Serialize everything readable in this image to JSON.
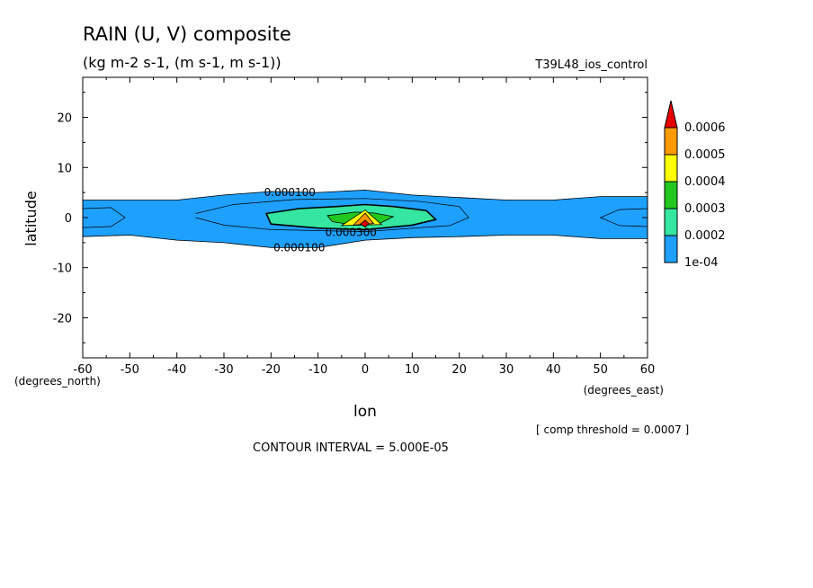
{
  "header": {
    "title": "RAIN (U, V) composite",
    "units": "(kg m-2 s-1, (m s-1, m s-1))",
    "run_name": "T39L48_ios_control"
  },
  "footer": {
    "threshold": "[ comp threshold = 0.0007 ]",
    "contour_interval": "CONTOUR INTERVAL = 5.000E-05"
  },
  "chart_data": {
    "type": "heatmap",
    "xlabel": "lon",
    "ylabel": "latitude",
    "x_unit_label": "(degrees_east)",
    "y_unit_label": "(degrees_north)",
    "xlim": [
      -60,
      60
    ],
    "ylim": [
      -28,
      28
    ],
    "x_ticks": [
      -60,
      -50,
      -40,
      -30,
      -20,
      -10,
      0,
      10,
      20,
      30,
      40,
      50,
      60
    ],
    "y_ticks": [
      -20,
      -10,
      0,
      10,
      20
    ],
    "x_tick_labels": [
      "-60",
      "-50",
      "-40",
      "-30",
      "-20",
      "-10",
      "0",
      "10",
      "20",
      "30",
      "40",
      "50",
      "60"
    ],
    "y_tick_labels": [
      "-20",
      "-10",
      "0",
      "10",
      "20"
    ],
    "colorbar": {
      "levels": [
        0.0001,
        0.0002,
        0.0003,
        0.0004,
        0.0005,
        0.0006
      ],
      "labels": [
        "1e-04",
        "0.0002",
        "0.0003",
        "0.0004",
        "0.0005",
        "0.0006"
      ],
      "colors": [
        "#1ea0ff",
        "#34e6a0",
        "#22c81e",
        "#ffff00",
        "#ff9a00",
        "#e60000"
      ]
    },
    "contour_labels": [
      {
        "text": "0.000100",
        "lon": -16,
        "lat": 5
      },
      {
        "text": "0.000100",
        "lon": -14,
        "lat": -6
      },
      {
        "text": "0.000300",
        "lon": -3,
        "lat": -3
      }
    ],
    "regions": [
      {
        "level": 0.0001,
        "shape": [
          [
            -60,
            3.5
          ],
          [
            -50,
            3.5
          ],
          [
            -40,
            3.5
          ],
          [
            -30,
            4.5
          ],
          [
            -20,
            5.2
          ],
          [
            -10,
            5
          ],
          [
            0,
            5.5
          ],
          [
            10,
            4.5
          ],
          [
            20,
            4
          ],
          [
            30,
            3.5
          ],
          [
            40,
            3.5
          ],
          [
            50,
            4.2
          ],
          [
            60,
            4.2
          ],
          [
            60,
            -4.2
          ],
          [
            50,
            -4.2
          ],
          [
            40,
            -3.5
          ],
          [
            30,
            -3.5
          ],
          [
            20,
            -3.8
          ],
          [
            10,
            -4
          ],
          [
            0,
            -4.5
          ],
          [
            -10,
            -6
          ],
          [
            -20,
            -6
          ],
          [
            -30,
            -5
          ],
          [
            -40,
            -4.5
          ],
          [
            -50,
            -3.5
          ],
          [
            -60,
            -3.8
          ]
        ]
      },
      {
        "level": 0.0002,
        "shape": [
          [
            -21,
            0.8
          ],
          [
            -14,
            1.8
          ],
          [
            -6,
            2.2
          ],
          [
            0,
            2.6
          ],
          [
            6,
            2.2
          ],
          [
            13,
            1.4
          ],
          [
            15,
            -0.4
          ],
          [
            10,
            -1.5
          ],
          [
            0,
            -2.4
          ],
          [
            -10,
            -2.1
          ],
          [
            -20,
            -1.3
          ]
        ]
      },
      {
        "level": 0.0003,
        "shape": [
          [
            -8,
            0.4
          ],
          [
            -2,
            1.1
          ],
          [
            2,
            0.9
          ],
          [
            6,
            0.2
          ],
          [
            3,
            -1.2
          ],
          [
            -3,
            -1.4
          ],
          [
            -7,
            -0.8
          ]
        ]
      },
      {
        "level": 0.0004,
        "shape": [
          [
            -5,
            -1.6
          ],
          [
            0,
            1.5
          ],
          [
            3.5,
            -1.4
          ]
        ]
      },
      {
        "level": 0.0005,
        "shape": [
          [
            -2.5,
            -1.5
          ],
          [
            0,
            0.9
          ],
          [
            1.8,
            -1.2
          ]
        ]
      },
      {
        "level": 0.0006,
        "shape": [
          [
            -1,
            -1.3
          ],
          [
            0,
            -0.5
          ],
          [
            0.8,
            -1.2
          ],
          [
            0,
            -1.9
          ]
        ]
      }
    ],
    "contour_lines": [
      [
        [
          -60,
          1.8
        ],
        [
          -54,
          2
        ],
        [
          -51,
          0
        ],
        [
          -54,
          -1.8
        ],
        [
          -60,
          -2
        ]
      ],
      [
        [
          -36,
          0.8
        ],
        [
          -28,
          2.6
        ],
        [
          -15,
          3.6
        ],
        [
          0,
          3.8
        ],
        [
          12,
          3.2
        ],
        [
          20,
          2.2
        ],
        [
          22,
          0
        ],
        [
          18,
          -1.6
        ],
        [
          0,
          -2.8
        ],
        [
          -20,
          -2.4
        ],
        [
          -30,
          -1.5
        ],
        [
          -36,
          0
        ]
      ],
      [
        [
          60,
          1.8
        ],
        [
          54,
          1.6
        ],
        [
          50,
          0
        ],
        [
          54,
          -1.6
        ],
        [
          60,
          -1.8
        ]
      ]
    ]
  }
}
